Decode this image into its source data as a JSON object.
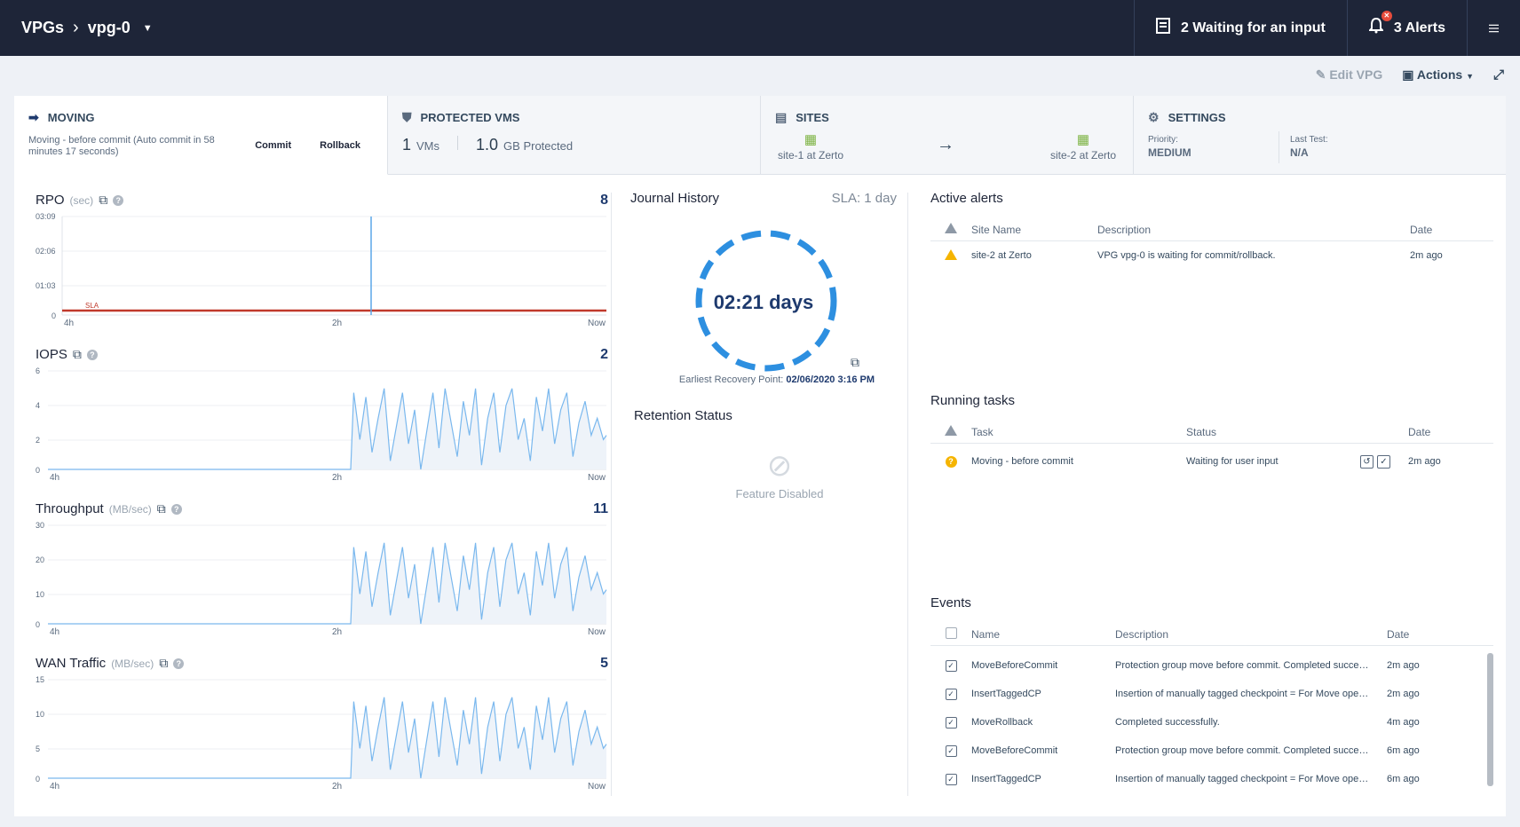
{
  "topbar": {
    "crumb_root": "VPGs",
    "crumb_current": "vpg-0",
    "waiting_label": "2 Waiting for an input",
    "alerts_label": "3 Alerts"
  },
  "subbar": {
    "edit_label": "Edit VPG",
    "actions_label": "Actions"
  },
  "header": {
    "moving": {
      "title": "MOVING",
      "text": "Moving - before commit (Auto commit in 58 minutes 17 seconds)",
      "commit": "Commit",
      "rollback": "Rollback"
    },
    "protected": {
      "title": "PROTECTED VMS",
      "vms_num": "1",
      "vms_label": "VMs",
      "gb_num": "1.0",
      "gb_label": "GB Protected"
    },
    "sites": {
      "title": "SITES",
      "source": "site-1 at Zerto",
      "target": "site-2 at Zerto"
    },
    "settings": {
      "title": "SETTINGS",
      "priority_label": "Priority:",
      "priority_value": "MEDIUM",
      "last_test_label": "Last Test:",
      "last_test_value": "N/A"
    }
  },
  "charts": {
    "rpo": {
      "title": "RPO",
      "unit": "(sec)",
      "value": "8",
      "yticks": [
        "03:09",
        "02:06",
        "01:03",
        "0"
      ],
      "xticks": [
        "4h",
        "2h",
        "Now"
      ],
      "sla_label": "SLA"
    },
    "iops": {
      "title": "IOPS",
      "unit": "",
      "value": "2",
      "yticks": [
        "6",
        "4",
        "2",
        "0"
      ],
      "xticks": [
        "4h",
        "2h",
        "Now"
      ]
    },
    "throughput": {
      "title": "Throughput",
      "unit": "(MB/sec)",
      "value": "11",
      "yticks": [
        "30",
        "20",
        "10",
        "0"
      ],
      "xticks": [
        "4h",
        "2h",
        "Now"
      ]
    },
    "wan": {
      "title": "WAN Traffic",
      "unit": "(MB/sec)",
      "value": "5",
      "yticks": [
        "15",
        "10",
        "5",
        "0"
      ],
      "xticks": [
        "4h",
        "2h",
        "Now"
      ]
    }
  },
  "journal": {
    "title": "Journal History",
    "sla": "SLA: 1 day",
    "value": "02:21 days",
    "erp_label": "Earliest Recovery Point:",
    "erp_value": "02/06/2020 3:16 PM",
    "retention_title": "Retention Status",
    "retention_status": "Feature Disabled"
  },
  "alerts": {
    "title": "Active alerts",
    "headers": [
      "Site Name",
      "Description",
      "Date"
    ],
    "rows": [
      {
        "site": "site-2 at Zerto",
        "description": "VPG vpg-0 is waiting for commit/rollback.",
        "date": "2m ago"
      }
    ]
  },
  "tasks": {
    "title": "Running tasks",
    "headers": [
      "Task",
      "Status",
      "Date"
    ],
    "rows": [
      {
        "task": "Moving - before commit",
        "status": "Waiting for user input",
        "date": "2m ago"
      }
    ]
  },
  "events": {
    "title": "Events",
    "headers": [
      "Name",
      "Description",
      "Date"
    ],
    "rows": [
      {
        "name": "MoveBeforeCommit",
        "description": "Protection group move before commit. Completed successfully.",
        "date": "2m ago"
      },
      {
        "name": "InsertTaggedCP",
        "description": "Insertion of manually tagged checkpoint = For Move operation",
        "date": "2m ago"
      },
      {
        "name": "MoveRollback",
        "description": "Completed successfully.",
        "date": "4m ago"
      },
      {
        "name": "MoveBeforeCommit",
        "description": "Protection group move before commit. Completed successfully.",
        "date": "6m ago"
      },
      {
        "name": "InsertTaggedCP",
        "description": "Insertion of manually tagged checkpoint = For Move operation",
        "date": "6m ago"
      }
    ]
  },
  "colors": {
    "navy": "#1e2538",
    "accent": "#2d8fe0",
    "sla_red": "#c0392b",
    "warning": "#f5b400"
  }
}
